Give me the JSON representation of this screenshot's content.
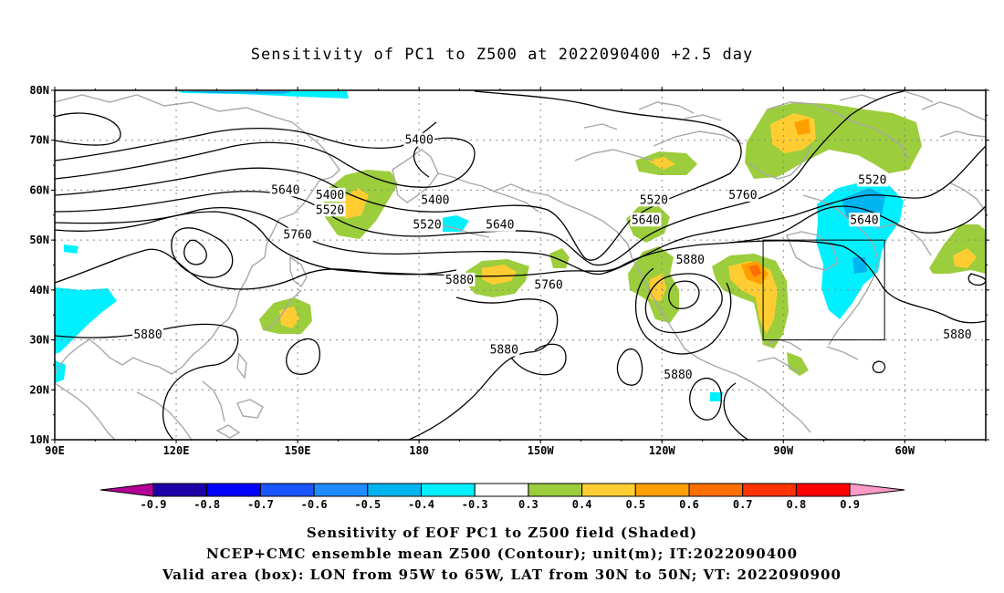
{
  "title": "Sensitivity of PC1 to Z500 at 2022090400 +2.5 day",
  "lat_labels": [
    "80N",
    "70N",
    "60N",
    "50N",
    "40N",
    "30N",
    "20N",
    "10N"
  ],
  "lon_labels": [
    "90E",
    "120E",
    "150E",
    "180",
    "150W",
    "120W",
    "90W",
    "60W"
  ],
  "contour_labels": [
    {
      "text": "5400",
      "lon": 158,
      "lat": 59
    },
    {
      "text": "5520",
      "lon": 158,
      "lat": 56
    },
    {
      "text": "5640",
      "lon": 147,
      "lat": 60
    },
    {
      "text": "5760",
      "lon": 150,
      "lat": 51
    },
    {
      "text": "5880",
      "lon": 113,
      "lat": 31
    },
    {
      "text": "5400",
      "lon": 180,
      "lat": 70
    },
    {
      "text": "5400",
      "lon": 184,
      "lat": 58
    },
    {
      "text": "5520",
      "lon": 182,
      "lat": 53
    },
    {
      "text": "5640",
      "lon": 200,
      "lat": 53
    },
    {
      "text": "5880",
      "lon": 190,
      "lat": 42
    },
    {
      "text": "5760",
      "lon": 212,
      "lat": 41
    },
    {
      "text": "5880",
      "lon": 201,
      "lat": 28
    },
    {
      "text": "5520",
      "lon": 238,
      "lat": 58
    },
    {
      "text": "5640",
      "lon": 236,
      "lat": 54
    },
    {
      "text": "5760",
      "lon": 260,
      "lat": 59
    },
    {
      "text": "5880",
      "lon": 247,
      "lat": 46
    },
    {
      "text": "5880",
      "lon": 244,
      "lat": 23
    },
    {
      "text": "5520",
      "lon": 292,
      "lat": 62
    },
    {
      "text": "5640",
      "lon": 290,
      "lat": 54
    },
    {
      "text": "5880",
      "lon": 313,
      "lat": 31
    }
  ],
  "colorbar": {
    "labels": [
      "-0.9",
      "-0.8",
      "-0.7",
      "-0.6",
      "-0.5",
      "-0.4",
      "-0.3",
      "0.3",
      "0.4",
      "0.5",
      "0.6",
      "0.7",
      "0.8",
      "0.9"
    ],
    "colors": [
      "#1d00a8",
      "#0000ff",
      "#1a55ff",
      "#1e8cff",
      "#00b4f0",
      "#00f0ff",
      "#ffffff",
      "#9ccd3c",
      "#ffcd32",
      "#ffa000",
      "#ff6e00",
      "#ff3200",
      "#ff0000"
    ],
    "low_arrow_color": "#b40096",
    "high_arrow_color": "#ff9ac8"
  },
  "valid_box": {
    "lon_west": -95,
    "lon_east": -65,
    "lat_south": 30,
    "lat_north": 50
  },
  "captions": [
    "Sensitivity of EOF PC1 to Z500 field (Shaded)",
    "NCEP+CMC ensemble mean Z500 (Contour); unit(m); IT:2022090400",
    "Valid area (box): LON from 95W to 65W, LAT from 30N to 50N; VT: 2022090900"
  ]
}
